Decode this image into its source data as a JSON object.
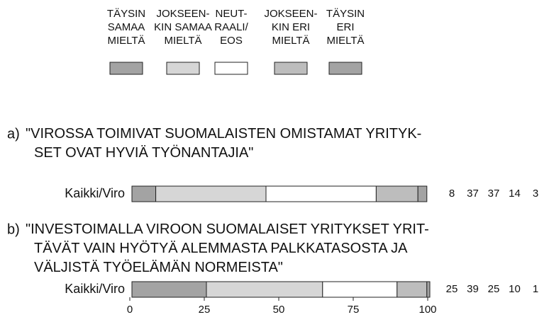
{
  "chart_data": {
    "type": "bar",
    "orientation": "horizontal",
    "stacked": true,
    "panel_labels": [
      "a)",
      "b)"
    ],
    "panel_titles": [
      "\"VIROSSA TOIMIVAT SUOMALAISTEN OMISTAMAT YRITYK-\nSET OVAT HYVIÄ TYÖNANTAJIA\"",
      "\"INVESTOIMALLA VIROON SUOMALAISET YRITYKSET YRIT-\nTÄVÄT VAIN HYÖTYÄ ALEMMASTA PALKKATASOSTA JA\nVÄLJISTÄ TYÖELÄMÄN NORMEISTA\""
    ],
    "categories": [
      "Kaikki/Viro",
      "Kaikki/Viro"
    ],
    "series": [
      {
        "name": "TÄYSIN\nSAMAA\nMIELTÄ",
        "color": "#a3a3a3",
        "values": [
          8,
          25
        ]
      },
      {
        "name": "JOKSEEN-\nKIN SAMAA\nMIELTÄ",
        "color": "#d6d6d6",
        "values": [
          37,
          39
        ]
      },
      {
        "name": "NEUT-\nRAALI/\nEOS",
        "color": "#ffffff",
        "values": [
          37,
          25
        ]
      },
      {
        "name": "JOKSEEN-\nKIN ERI\nMIELTÄ",
        "color": "#bdbdbd",
        "values": [
          14,
          10
        ]
      },
      {
        "name": "TÄYSIN\nERI\nMIELTÄ",
        "color": "#a3a3a3",
        "values": [
          3,
          1
        ]
      }
    ],
    "xlim": [
      0,
      100
    ],
    "xticks": [
      0,
      25,
      50,
      75,
      100
    ]
  }
}
